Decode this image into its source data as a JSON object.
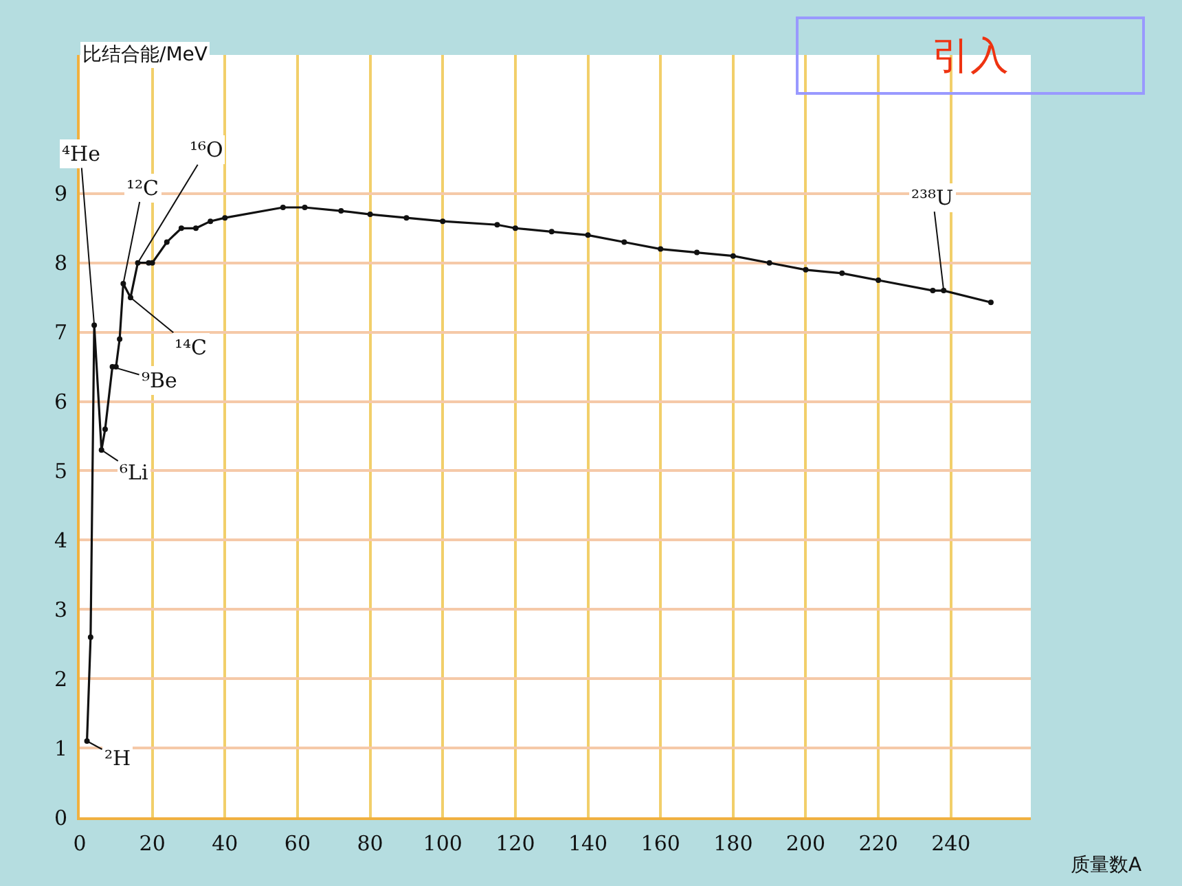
{
  "chart_data": {
    "type": "line",
    "title": "引入",
    "xlabel": "质量数A",
    "ylabel": "比结合能/MeV",
    "x": [
      2,
      3,
      4,
      6,
      7,
      9,
      10,
      11,
      12,
      14,
      16,
      19,
      20,
      24,
      28,
      32,
      36,
      40,
      56,
      62,
      72,
      80,
      90,
      100,
      115,
      120,
      130,
      140,
      150,
      160,
      170,
      180,
      190,
      200,
      210,
      220,
      235,
      238,
      251
    ],
    "series": [
      {
        "color": "#111111",
        "values": [
          1.1,
          2.6,
          7.1,
          5.3,
          5.6,
          6.5,
          6.5,
          6.9,
          7.7,
          7.5,
          8.0,
          8.0,
          8.0,
          8.3,
          8.5,
          8.5,
          8.6,
          8.65,
          8.8,
          8.8,
          8.75,
          8.7,
          8.65,
          8.6,
          8.55,
          8.5,
          8.45,
          8.4,
          8.3,
          8.2,
          8.15,
          8.1,
          8.0,
          7.9,
          7.85,
          7.75,
          7.6,
          7.6,
          7.43
        ]
      }
    ],
    "annotations": [
      {
        "text": "²H",
        "x": 2,
        "y": 1.1
      },
      {
        "text": "⁴He",
        "x": 4,
        "y": 7.1
      },
      {
        "text": "⁶Li",
        "x": 6,
        "y": 5.3
      },
      {
        "text": "⁹Be",
        "x": 9,
        "y": 6.5
      },
      {
        "text": "¹²C",
        "x": 12,
        "y": 7.7
      },
      {
        "text": "¹⁴C",
        "x": 14,
        "y": 7.5
      },
      {
        "text": "¹⁶O",
        "x": 16,
        "y": 8.0
      },
      {
        "text": "²³⁸U",
        "x": 238,
        "y": 7.6
      }
    ],
    "xlim": [
      0,
      262
    ],
    "xticks": [
      0,
      20,
      40,
      60,
      80,
      100,
      120,
      140,
      160,
      180,
      200,
      220,
      240
    ],
    "ylim": [
      0,
      11
    ],
    "yticks": [
      0,
      1,
      2,
      3,
      4,
      5,
      6,
      7,
      8,
      9
    ],
    "grid": true,
    "marker": "circle",
    "line_style": "solid",
    "legend": false
  }
}
